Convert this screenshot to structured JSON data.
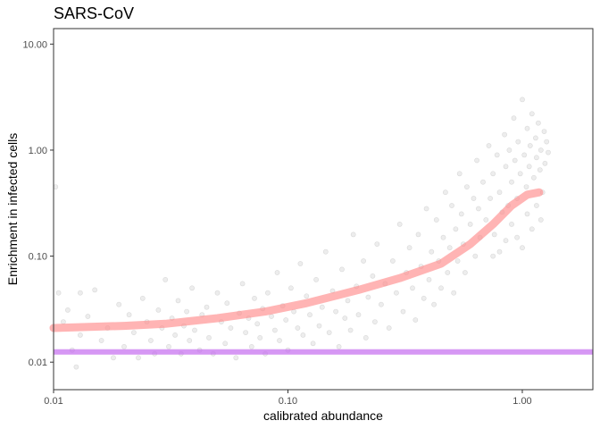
{
  "chart_data": {
    "type": "scatter",
    "title": "SARS-CoV",
    "xlabel": "calibrated abundance",
    "ylabel": "Enrichment in infected cells",
    "x_scale": "log10",
    "y_scale": "log10",
    "xlim": [
      0.01,
      2.0
    ],
    "ylim": [
      0.0055,
      14.0
    ],
    "x_ticks": [
      {
        "value": 0.01,
        "label": "0.01"
      },
      {
        "value": 0.1,
        "label": "0.10"
      },
      {
        "value": 1.0,
        "label": "1.00"
      }
    ],
    "y_ticks": [
      {
        "value": 0.01,
        "label": "0.01"
      },
      {
        "value": 0.1,
        "label": "0.10"
      },
      {
        "value": 1.0,
        "label": "1.00"
      },
      {
        "value": 10.0,
        "label": "10.00"
      }
    ],
    "grid": false,
    "point_color": "#999999",
    "trend_color": "#ff8c8c",
    "reference_color": "#c46bf0",
    "points": [
      [
        0.0105,
        0.045
      ],
      [
        0.011,
        0.024
      ],
      [
        0.012,
        0.013
      ],
      [
        0.0115,
        0.031
      ],
      [
        0.013,
        0.018
      ],
      [
        0.0125,
        0.009
      ],
      [
        0.014,
        0.027
      ],
      [
        0.015,
        0.048
      ],
      [
        0.016,
        0.016
      ],
      [
        0.017,
        0.021
      ],
      [
        0.018,
        0.011
      ],
      [
        0.019,
        0.035
      ],
      [
        0.02,
        0.014
      ],
      [
        0.021,
        0.028
      ],
      [
        0.022,
        0.019
      ],
      [
        0.023,
        0.011
      ],
      [
        0.024,
        0.04
      ],
      [
        0.025,
        0.024
      ],
      [
        0.026,
        0.016
      ],
      [
        0.027,
        0.012
      ],
      [
        0.028,
        0.031
      ],
      [
        0.029,
        0.021
      ],
      [
        0.03,
        0.06
      ],
      [
        0.031,
        0.014
      ],
      [
        0.032,
        0.026
      ],
      [
        0.033,
        0.018
      ],
      [
        0.034,
        0.038
      ],
      [
        0.035,
        0.012
      ],
      [
        0.036,
        0.022
      ],
      [
        0.037,
        0.03
      ],
      [
        0.038,
        0.016
      ],
      [
        0.039,
        0.05
      ],
      [
        0.04,
        0.02
      ],
      [
        0.042,
        0.013
      ],
      [
        0.043,
        0.028
      ],
      [
        0.045,
        0.033
      ],
      [
        0.046,
        0.017
      ],
      [
        0.048,
        0.012
      ],
      [
        0.05,
        0.045
      ],
      [
        0.052,
        0.024
      ],
      [
        0.054,
        0.015
      ],
      [
        0.055,
        0.036
      ],
      [
        0.057,
        0.021
      ],
      [
        0.06,
        0.011
      ],
      [
        0.062,
        0.029
      ],
      [
        0.064,
        0.055
      ],
      [
        0.066,
        0.019
      ],
      [
        0.068,
        0.026
      ],
      [
        0.07,
        0.014
      ],
      [
        0.072,
        0.04
      ],
      [
        0.074,
        0.023
      ],
      [
        0.076,
        0.017
      ],
      [
        0.078,
        0.032
      ],
      [
        0.08,
        0.012
      ],
      [
        0.082,
        0.045
      ],
      [
        0.085,
        0.027
      ],
      [
        0.088,
        0.02
      ],
      [
        0.09,
        0.07
      ],
      [
        0.092,
        0.016
      ],
      [
        0.095,
        0.034
      ],
      [
        0.098,
        0.025
      ],
      [
        0.1,
        0.013
      ],
      [
        0.103,
        0.05
      ],
      [
        0.106,
        0.03
      ],
      [
        0.11,
        0.021
      ],
      [
        0.113,
        0.085
      ],
      [
        0.116,
        0.018
      ],
      [
        0.12,
        0.042
      ],
      [
        0.124,
        0.028
      ],
      [
        0.128,
        0.015
      ],
      [
        0.132,
        0.06
      ],
      [
        0.136,
        0.022
      ],
      [
        0.14,
        0.033
      ],
      [
        0.145,
        0.11
      ],
      [
        0.15,
        0.019
      ],
      [
        0.155,
        0.047
      ],
      [
        0.16,
        0.03
      ],
      [
        0.165,
        0.014
      ],
      [
        0.17,
        0.075
      ],
      [
        0.175,
        0.026
      ],
      [
        0.18,
        0.038
      ],
      [
        0.185,
        0.02
      ],
      [
        0.19,
        0.16
      ],
      [
        0.196,
        0.052
      ],
      [
        0.2,
        0.028
      ],
      [
        0.21,
        0.09
      ],
      [
        0.215,
        0.017
      ],
      [
        0.22,
        0.041
      ],
      [
        0.23,
        0.065
      ],
      [
        0.235,
        0.024
      ],
      [
        0.24,
        0.13
      ],
      [
        0.25,
        0.035
      ],
      [
        0.26,
        0.055
      ],
      [
        0.27,
        0.021
      ],
      [
        0.28,
        0.09
      ],
      [
        0.29,
        0.045
      ],
      [
        0.3,
        0.2
      ],
      [
        0.31,
        0.03
      ],
      [
        0.32,
        0.07
      ],
      [
        0.33,
        0.12
      ],
      [
        0.34,
        0.05
      ],
      [
        0.35,
        0.025
      ],
      [
        0.36,
        0.16
      ],
      [
        0.37,
        0.08
      ],
      [
        0.38,
        0.04
      ],
      [
        0.39,
        0.28
      ],
      [
        0.4,
        0.06
      ],
      [
        0.41,
        0.11
      ],
      [
        0.42,
        0.035
      ],
      [
        0.43,
        0.22
      ],
      [
        0.44,
        0.09
      ],
      [
        0.45,
        0.05
      ],
      [
        0.46,
        0.15
      ],
      [
        0.47,
        0.4
      ],
      [
        0.48,
        0.07
      ],
      [
        0.49,
        0.12
      ],
      [
        0.5,
        0.3
      ],
      [
        0.51,
        0.045
      ],
      [
        0.52,
        0.18
      ],
      [
        0.53,
        0.09
      ],
      [
        0.54,
        0.6
      ],
      [
        0.55,
        0.25
      ],
      [
        0.56,
        0.13
      ],
      [
        0.57,
        0.07
      ],
      [
        0.58,
        0.45
      ],
      [
        0.6,
        0.2
      ],
      [
        0.62,
        0.35
      ],
      [
        0.63,
        0.1
      ],
      [
        0.64,
        0.8
      ],
      [
        0.65,
        0.28
      ],
      [
        0.66,
        0.15
      ],
      [
        0.68,
        0.5
      ],
      [
        0.7,
        0.22
      ],
      [
        0.72,
        1.1
      ],
      [
        0.73,
        0.35
      ],
      [
        0.75,
        0.6
      ],
      [
        0.76,
        0.16
      ],
      [
        0.78,
        0.9
      ],
      [
        0.8,
        0.4
      ],
      [
        0.82,
        0.26
      ],
      [
        0.84,
        1.4
      ],
      [
        0.85,
        0.7
      ],
      [
        0.87,
        0.3
      ],
      [
        0.88,
        1.0
      ],
      [
        0.9,
        0.5
      ],
      [
        0.92,
        2.0
      ],
      [
        0.93,
        0.8
      ],
      [
        0.95,
        0.35
      ],
      [
        0.96,
        1.2
      ],
      [
        0.98,
        0.6
      ],
      [
        1.0,
        3.0
      ],
      [
        1.02,
        0.9
      ],
      [
        1.04,
        0.45
      ],
      [
        1.05,
        1.6
      ],
      [
        1.07,
        0.7
      ],
      [
        1.08,
        1.1
      ],
      [
        1.1,
        2.2
      ],
      [
        1.12,
        0.55
      ],
      [
        1.14,
        1.3
      ],
      [
        1.15,
        0.85
      ],
      [
        1.17,
        1.8
      ],
      [
        1.19,
        0.65
      ],
      [
        1.2,
        1.0
      ],
      [
        1.22,
        0.4
      ],
      [
        1.24,
        1.5
      ],
      [
        1.25,
        0.75
      ],
      [
        1.27,
        1.2
      ],
      [
        1.29,
        0.95
      ],
      [
        0.0102,
        0.45
      ],
      [
        0.013,
        0.045
      ],
      [
        0.9,
        0.2
      ],
      [
        0.95,
        0.15
      ],
      [
        1.0,
        0.12
      ],
      [
        1.05,
        0.25
      ],
      [
        1.1,
        0.18
      ],
      [
        0.85,
        0.14
      ],
      [
        0.8,
        0.11
      ],
      [
        1.15,
        0.3
      ],
      [
        1.2,
        0.22
      ],
      [
        0.75,
        0.1
      ]
    ],
    "trend": {
      "x": [
        0.01,
        0.02,
        0.03,
        0.05,
        0.08,
        0.12,
        0.2,
        0.3,
        0.45,
        0.6,
        0.75,
        0.9,
        1.05,
        1.18
      ],
      "y": [
        0.021,
        0.022,
        0.023,
        0.026,
        0.03,
        0.036,
        0.048,
        0.062,
        0.085,
        0.13,
        0.2,
        0.3,
        0.38,
        0.4
      ]
    },
    "reference_line": {
      "y": 0.0125
    }
  }
}
